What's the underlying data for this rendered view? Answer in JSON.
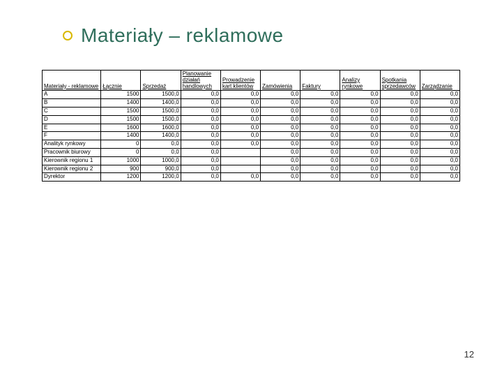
{
  "title": "Materiały – reklamowe",
  "title_color": "#2f6e5b",
  "bullet_border_color": "#d9b800",
  "page_number": "12",
  "table": {
    "columns": [
      "Materiały - reklamowe",
      "Łącznie",
      "Sprzedaż",
      "Planowanie działań handlowych",
      "Prowadzenie kart klientów",
      "Zamówienia",
      "Faktury",
      "Analizy rynkowe",
      "Spotkania sprzedawców",
      "Zarządzanie"
    ],
    "rows": [
      {
        "label": "A",
        "vals": [
          "1500",
          "1500,0",
          "0,0",
          "0,0",
          "0,0",
          "0,0",
          "0,0",
          "0,0",
          "0,0"
        ]
      },
      {
        "label": "B",
        "vals": [
          "1400",
          "1400,0",
          "0,0",
          "0,0",
          "0,0",
          "0,0",
          "0,0",
          "0,0",
          "0,0"
        ]
      },
      {
        "label": "C",
        "vals": [
          "1500",
          "1500,0",
          "0,0",
          "0,0",
          "0,0",
          "0,0",
          "0,0",
          "0,0",
          "0,0"
        ]
      },
      {
        "label": "D",
        "vals": [
          "1500",
          "1500,0",
          "0,0",
          "0,0",
          "0,0",
          "0,0",
          "0,0",
          "0,0",
          "0,0"
        ]
      },
      {
        "label": "E",
        "vals": [
          "1600",
          "1600,0",
          "0,0",
          "0,0",
          "0,0",
          "0,0",
          "0,0",
          "0,0",
          "0,0"
        ]
      },
      {
        "label": "F",
        "vals": [
          "1400",
          "1400,0",
          "0,0",
          "0,0",
          "0,0",
          "0,0",
          "0,0",
          "0,0",
          "0,0"
        ]
      },
      {
        "label": "Analityk rynkowy",
        "vals": [
          "0",
          "0,0",
          "0,0",
          "0,0",
          "0,0",
          "0,0",
          "0,0",
          "0,0",
          "0,0"
        ]
      },
      {
        "label": "Pracownik biurowy",
        "vals": [
          "0",
          "0,0",
          "0,0",
          "",
          "0,0",
          "0,0",
          "0,0",
          "0,0",
          "0,0"
        ]
      },
      {
        "label": "Kierownik regionu 1",
        "vals": [
          "1000",
          "1000,0",
          "0,0",
          "",
          "0,0",
          "0,0",
          "0,0",
          "0,0",
          "0,0"
        ]
      },
      {
        "label": "Kierownik regionu 2",
        "vals": [
          "900",
          "900,0",
          "0,0",
          "",
          "0,0",
          "0,0",
          "0,0",
          "0,0",
          "0,0"
        ]
      },
      {
        "label": "Dyrektor",
        "vals": [
          "1200",
          "1200,0",
          "0,0",
          "0,0",
          "0,0",
          "0,0",
          "0,0",
          "0,0",
          "0,0"
        ]
      }
    ]
  }
}
